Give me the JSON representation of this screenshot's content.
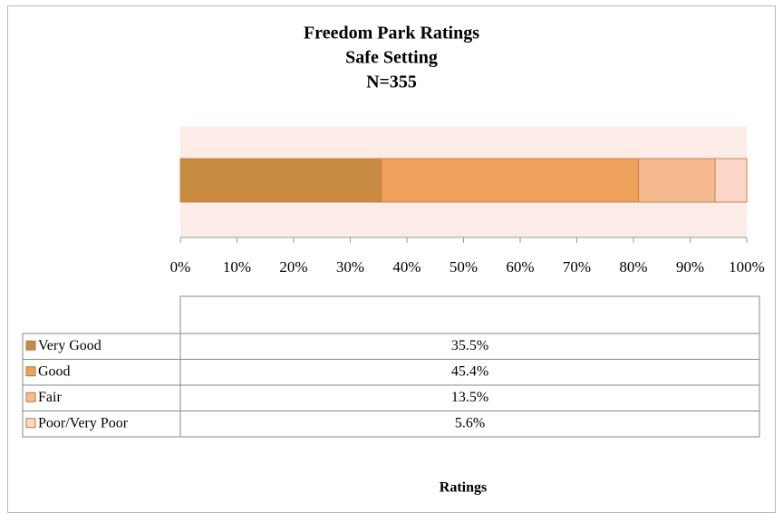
{
  "chart_data": {
    "type": "stacked_barh",
    "title": [
      "Freedom Park Ratings",
      "Safe Setting",
      "N=355"
    ],
    "xlabel": "Ratings",
    "categories": [
      null
    ],
    "series": [
      {
        "name": "Very Good",
        "color": "#c98a42",
        "values": [
          35.5
        ],
        "value_labels": [
          "35.5%"
        ]
      },
      {
        "name": "Good",
        "color": "#eda15b",
        "values": [
          45.4
        ],
        "value_labels": [
          "45.4%"
        ]
      },
      {
        "name": "Fair",
        "color": "#f5ba90",
        "values": [
          13.5
        ],
        "value_labels": [
          "13.5%"
        ]
      },
      {
        "name": "Poor/Very Poor",
        "color": "#fcd6c6",
        "values": [
          5.6
        ],
        "value_labels": [
          "5.6%"
        ]
      }
    ],
    "xlim": [
      0,
      100
    ],
    "xticks": [
      {
        "value": 0,
        "label": "0%"
      },
      {
        "value": 10,
        "label": "10%"
      },
      {
        "value": 20,
        "label": "20%"
      },
      {
        "value": 30,
        "label": "30%"
      },
      {
        "value": 40,
        "label": "40%"
      },
      {
        "value": 50,
        "label": "50%"
      },
      {
        "value": 60,
        "label": "60%"
      },
      {
        "value": 70,
        "label": "70%"
      },
      {
        "value": 80,
        "label": "80%"
      },
      {
        "value": 90,
        "label": "90%"
      },
      {
        "value": 100,
        "label": "100%"
      }
    ],
    "plot_background": "#fcece7",
    "data_table": true
  }
}
